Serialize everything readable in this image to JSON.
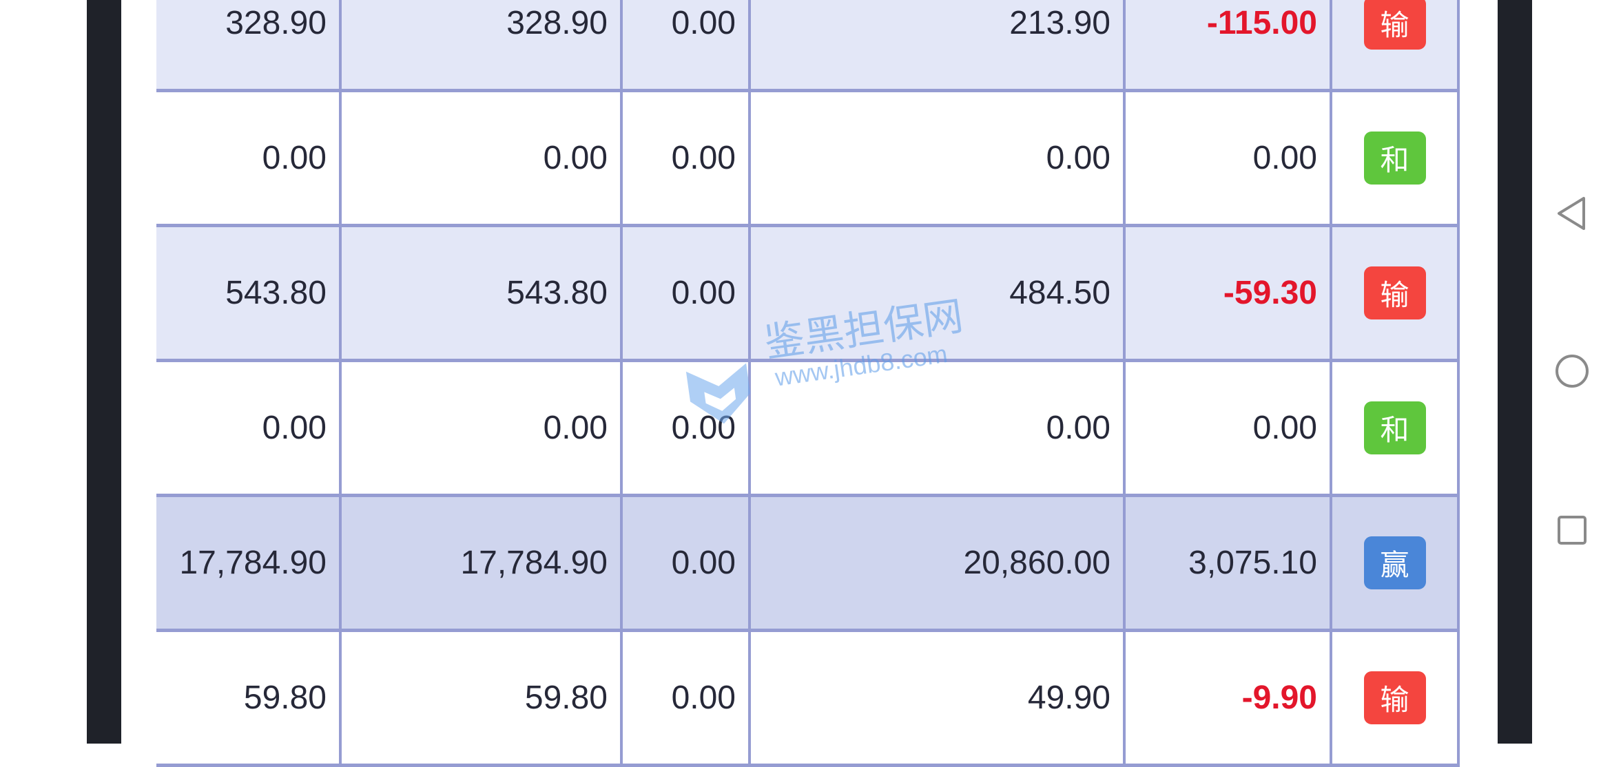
{
  "table": {
    "rows": [
      {
        "style": "stripe",
        "cells": [
          "328.90",
          "328.90",
          "0.00",
          "213.90",
          "-115.00"
        ],
        "negative": true,
        "result": "输",
        "result_color": "#f4453f"
      },
      {
        "style": "plain",
        "cells": [
          "0.00",
          "0.00",
          "0.00",
          "0.00",
          "0.00"
        ],
        "negative": false,
        "result": "和",
        "result_color": "#5fc63d"
      },
      {
        "style": "stripe",
        "cells": [
          "543.80",
          "543.80",
          "0.00",
          "484.50",
          "-59.30"
        ],
        "negative": true,
        "result": "输",
        "result_color": "#f4453f"
      },
      {
        "style": "plain",
        "cells": [
          "0.00",
          "0.00",
          "0.00",
          "0.00",
          "0.00"
        ],
        "negative": false,
        "result": "和",
        "result_color": "#5fc63d"
      },
      {
        "style": "total",
        "cells": [
          "17,784.90",
          "17,784.90",
          "0.00",
          "20,860.00",
          "3,075.10"
        ],
        "negative": false,
        "result": "赢",
        "result_color": "#4a86d8"
      },
      {
        "style": "plain",
        "cells": [
          "59.80",
          "59.80",
          "0.00",
          "49.90",
          "-9.90"
        ],
        "negative": true,
        "result": "输",
        "result_color": "#f4453f"
      }
    ]
  },
  "watermark": {
    "title": "鉴黑担保网",
    "url": "www.jhdb8.com"
  },
  "navbar": {
    "icons": [
      "back-icon",
      "home-icon",
      "recents-icon"
    ]
  },
  "colors": {
    "border": "#959cd2",
    "negative": "#e3162b",
    "stripe": "#e3e7f7",
    "total": "#cfd5ee"
  }
}
